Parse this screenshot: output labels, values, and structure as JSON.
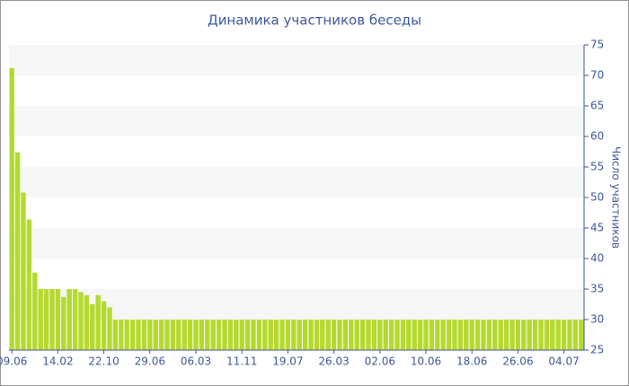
{
  "chart_data": {
    "type": "bar",
    "title": "Динамика участников беседы",
    "y_label": "Число участников",
    "categories": [
      "09.06",
      null,
      null,
      null,
      null,
      null,
      null,
      null,
      "14.02",
      null,
      null,
      null,
      null,
      null,
      null,
      null,
      "22.10",
      null,
      null,
      null,
      null,
      null,
      null,
      null,
      "29.06",
      null,
      null,
      null,
      null,
      null,
      null,
      null,
      "06.03",
      null,
      null,
      null,
      null,
      null,
      null,
      null,
      "11.11",
      null,
      null,
      null,
      null,
      null,
      null,
      null,
      "19.07",
      null,
      null,
      null,
      null,
      null,
      null,
      null,
      "26.03",
      null,
      null,
      null,
      null,
      null,
      null,
      null,
      "02.06",
      null,
      null,
      null,
      null,
      null,
      null,
      null,
      "10.06",
      null,
      null,
      null,
      null,
      null,
      null,
      null,
      "18.06",
      null,
      null,
      null,
      null,
      null,
      null,
      null,
      "26.06",
      null,
      null,
      null,
      null,
      null,
      null,
      null,
      "04.07",
      null,
      null,
      null
    ],
    "values": [
      71.2,
      57.4,
      50.8,
      46.4,
      37.7,
      35,
      35,
      35,
      35,
      33.7,
      35,
      35,
      34.5,
      34,
      32.5,
      34,
      33,
      32,
      30,
      30,
      30,
      30,
      30,
      30,
      30,
      30,
      30,
      30,
      30,
      30,
      30,
      30,
      30,
      30,
      30,
      30,
      30,
      30,
      30,
      30,
      30,
      30,
      30,
      30,
      30,
      30,
      30,
      30,
      30,
      30,
      30,
      30,
      30,
      30,
      30,
      30,
      30,
      30,
      30,
      30,
      30,
      30,
      30,
      30,
      30,
      30,
      30,
      30,
      30,
      30,
      30,
      30,
      30,
      30,
      30,
      30,
      30,
      30,
      30,
      30,
      30,
      30,
      30,
      30,
      30,
      30,
      30,
      30,
      30,
      30,
      30,
      30,
      30,
      30,
      30,
      30,
      30,
      30,
      30,
      30
    ],
    "color": "#b5da2f",
    "ylim": [
      25,
      75
    ],
    "yticks": [
      25,
      30,
      35,
      40,
      45,
      50,
      55,
      60,
      65,
      70,
      75
    ],
    "grid": true,
    "y_axis_side": "right"
  }
}
